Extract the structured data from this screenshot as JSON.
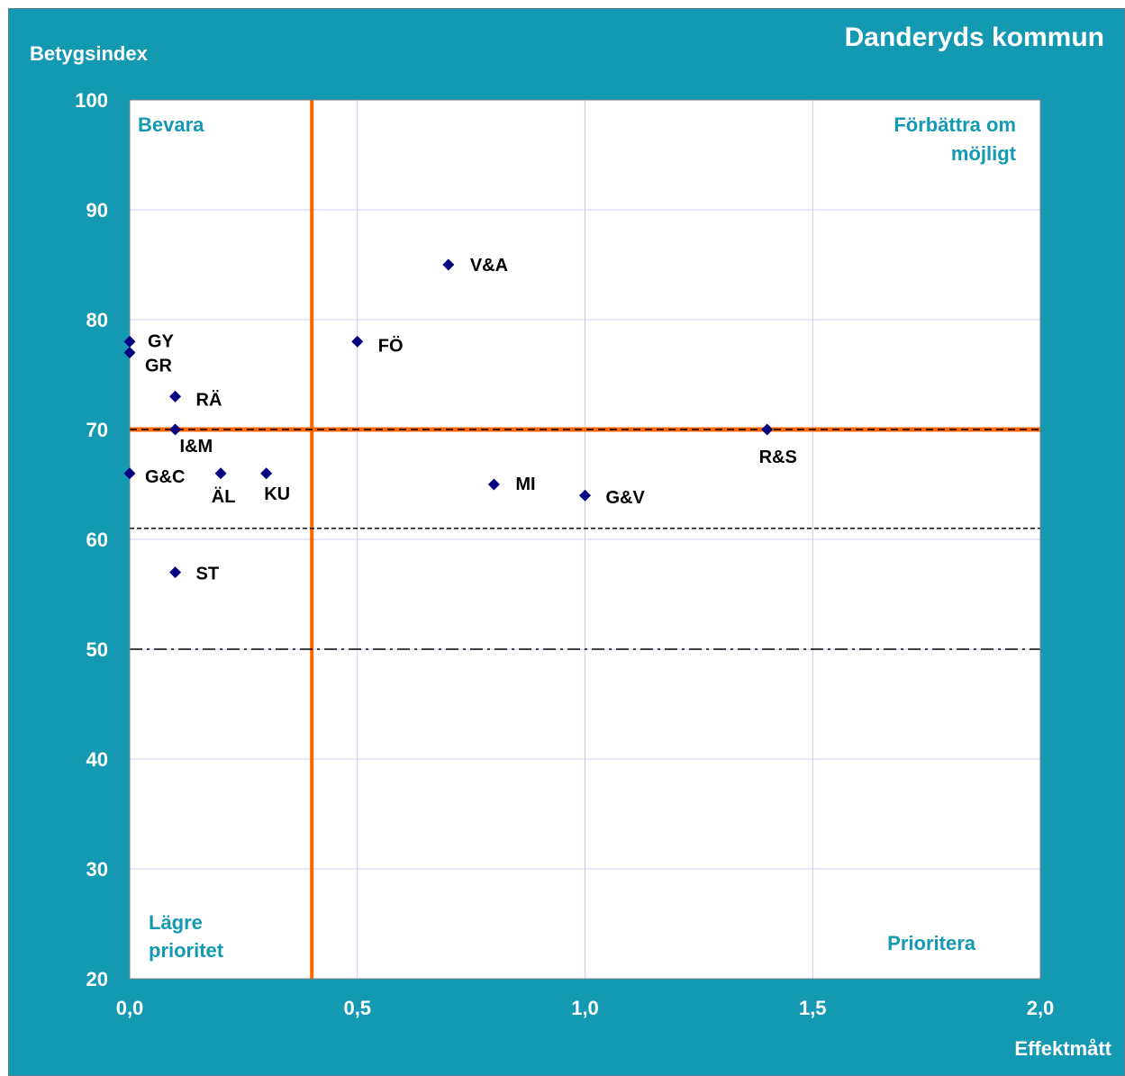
{
  "chart_data": {
    "type": "scatter",
    "title": "Danderyds kommun",
    "xlabel": "Effektmått",
    "ylabel": "Betygsindex",
    "xlim": [
      0,
      2
    ],
    "ylim": [
      20,
      100
    ],
    "x_ticks": [
      "0,0",
      "0,5",
      "1,0",
      "1,5",
      "2,0"
    ],
    "y_ticks": [
      "20",
      "30",
      "40",
      "50",
      "60",
      "70",
      "80",
      "90",
      "100"
    ],
    "grid": true,
    "quadrants": {
      "top_left": "Bevara",
      "top_right": [
        "Förbättra om",
        "möjligt"
      ],
      "bottom_left": [
        "Lägre",
        "prioritet"
      ],
      "bottom_right": "Prioritera"
    },
    "reference_lines": [
      {
        "orientation": "vertical",
        "x": 0.4,
        "style": "solid",
        "color": "#ff6600"
      },
      {
        "orientation": "horizontal",
        "y": 70,
        "style": "solid-dashed",
        "color": "#ff6600"
      },
      {
        "orientation": "horizontal",
        "y": 61,
        "style": "dashed",
        "color": "#000000"
      },
      {
        "orientation": "horizontal",
        "y": 50,
        "style": "dash-dot",
        "color": "#000000"
      }
    ],
    "points": [
      {
        "label": "V&A",
        "x": 0.7,
        "y": 85
      },
      {
        "label": "GY",
        "x": 0.0,
        "y": 78
      },
      {
        "label": "GR",
        "x": 0.0,
        "y": 77
      },
      {
        "label": "FÖ",
        "x": 0.5,
        "y": 78
      },
      {
        "label": "RÄ",
        "x": 0.1,
        "y": 73
      },
      {
        "label": "I&M",
        "x": 0.1,
        "y": 70
      },
      {
        "label": "R&S",
        "x": 1.4,
        "y": 70
      },
      {
        "label": "G&C",
        "x": 0.0,
        "y": 66
      },
      {
        "label": "ÄL",
        "x": 0.2,
        "y": 66
      },
      {
        "label": "KU",
        "x": 0.3,
        "y": 66
      },
      {
        "label": "MI",
        "x": 0.8,
        "y": 65
      },
      {
        "label": "G&V",
        "x": 1.0,
        "y": 64
      },
      {
        "label": "ST",
        "x": 0.1,
        "y": 57
      }
    ],
    "colors": {
      "background": "#1499b2",
      "plot_area": "#ffffff",
      "grid": "#ccccee",
      "marker": "#000080",
      "quadrant_text": "#1499b2",
      "axis_text": "#ffffff",
      "point_label": "#000000"
    }
  }
}
